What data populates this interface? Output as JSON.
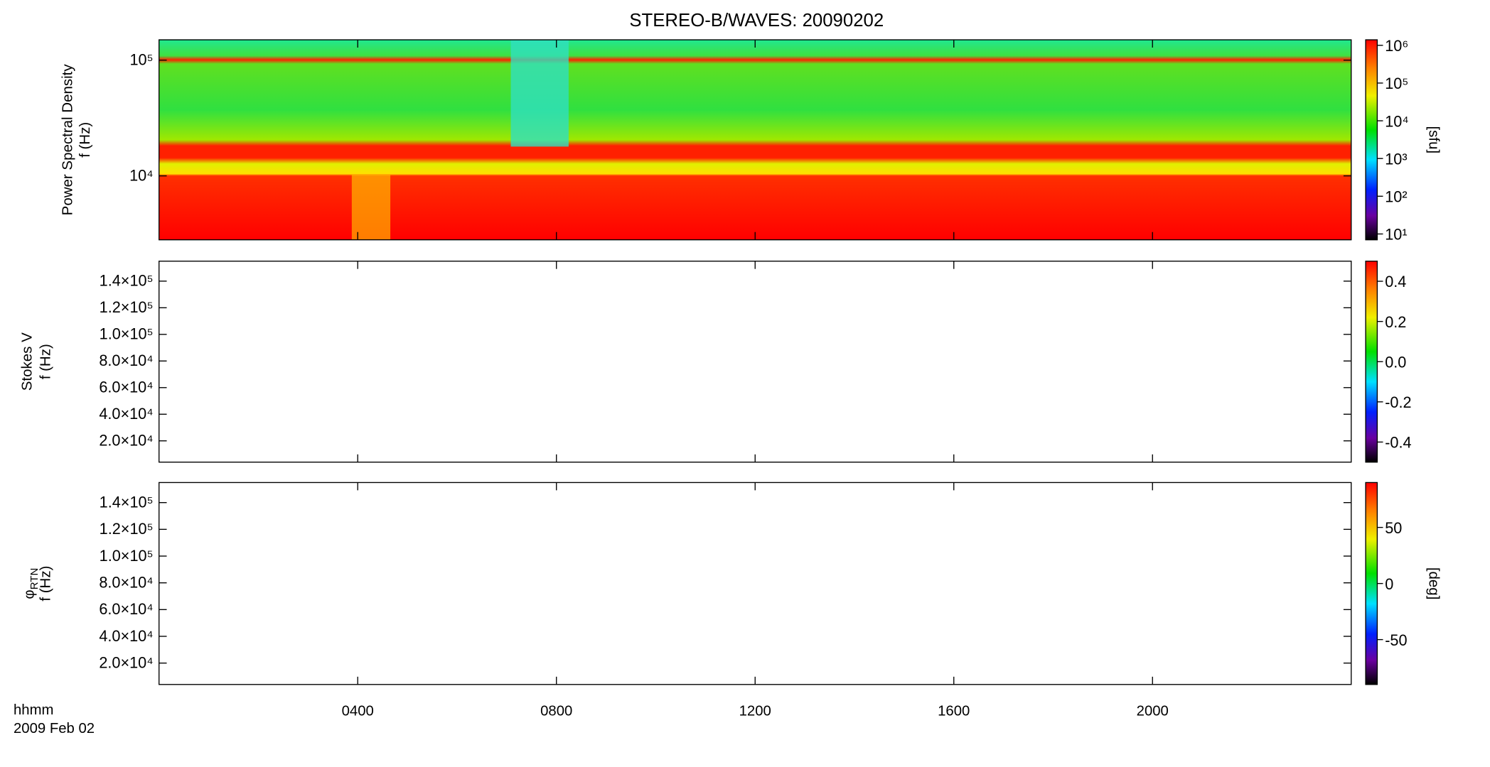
{
  "title": "STEREO-B/WAVES: 20090202",
  "x_label": "hhmm",
  "date_label": "2009 Feb 02",
  "chart_data": [
    {
      "type": "heatmap",
      "quantity": "Power Spectral Density",
      "y_label": "f (Hz)",
      "log": true,
      "ylim": [
        2800,
        150000
      ],
      "yticks": [
        {
          "value": 10000,
          "label": "10⁴"
        },
        {
          "value": 100000,
          "label": "10⁵"
        }
      ],
      "xlim": [
        0,
        24
      ],
      "xticks": [
        4,
        8,
        12,
        16,
        20
      ],
      "zlog": true,
      "zlim": [
        7,
        1400000
      ],
      "zlabel": "[sfu]",
      "zticks": [
        {
          "value": 10,
          "label": "10¹"
        },
        {
          "value": 100,
          "label": "10²"
        },
        {
          "value": 1000,
          "label": "10³"
        },
        {
          "value": 10000,
          "label": "10⁴"
        },
        {
          "value": 100000,
          "label": "10⁵"
        },
        {
          "value": 1000000,
          "label": "10⁶"
        }
      ]
    },
    {
      "type": "heatmap",
      "quantity": "Stokes V",
      "y_label": "f (Hz)",
      "log": false,
      "ylim": [
        4000,
        155000
      ],
      "yticks": [
        {
          "value": 20000,
          "label": "2.0×10⁴"
        },
        {
          "value": 40000,
          "label": "4.0×10⁴"
        },
        {
          "value": 60000,
          "label": "6.0×10⁴"
        },
        {
          "value": 80000,
          "label": "8.0×10⁴"
        },
        {
          "value": 100000,
          "label": "1.0×10⁵"
        },
        {
          "value": 120000,
          "label": "1.2×10⁵"
        },
        {
          "value": 140000,
          "label": "1.4×10⁵"
        }
      ],
      "xlim": [
        0,
        24
      ],
      "xticks": [
        4,
        8,
        12,
        16,
        20
      ],
      "zlog": false,
      "zlim": [
        -0.5,
        0.5
      ],
      "zticks": [
        -0.4,
        -0.2,
        {
          "value": 0,
          "label": "0.0"
        },
        0.2,
        0.4
      ]
    },
    {
      "type": "heatmap",
      "quantity": "φ",
      "quantity_subscript": "RTN",
      "y_label": "f (Hz)",
      "log": false,
      "ylim": [
        4000,
        155000
      ],
      "yticks": [
        {
          "value": 20000,
          "label": "2.0×10⁴"
        },
        {
          "value": 40000,
          "label": "4.0×10⁴"
        },
        {
          "value": 60000,
          "label": "6.0×10⁴"
        },
        {
          "value": 80000,
          "label": "8.0×10⁴"
        },
        {
          "value": 100000,
          "label": "1.0×10⁵"
        },
        {
          "value": 120000,
          "label": "1.2×10⁵"
        },
        {
          "value": 140000,
          "label": "1.4×10⁵"
        }
      ],
      "xlim": [
        0,
        24
      ],
      "xticks": [
        {
          "value": 4,
          "label": "0400"
        },
        {
          "value": 8,
          "label": "0800"
        },
        {
          "value": 12,
          "label": "1200"
        },
        {
          "value": 16,
          "label": "1600"
        },
        {
          "value": 20,
          "label": "2000"
        }
      ],
      "zlog": false,
      "zlim": [
        -90,
        90
      ],
      "zlabel": "[deg]",
      "zticks": [
        -50,
        0,
        50
      ]
    }
  ]
}
